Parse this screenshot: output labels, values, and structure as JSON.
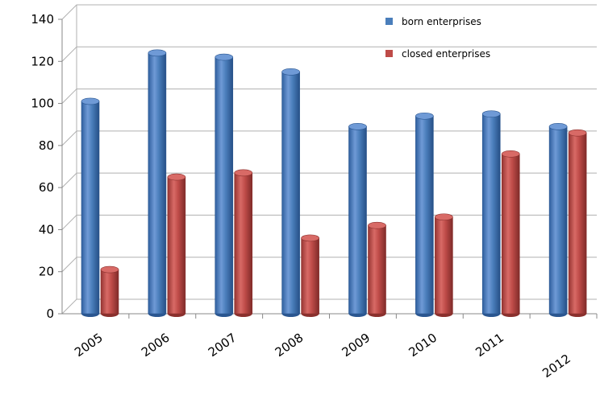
{
  "chart_data": {
    "type": "bar",
    "title": "",
    "xlabel": "",
    "ylabel": "",
    "categories": [
      "2005",
      "2006",
      "2007",
      "2008",
      "2009",
      "2010",
      "2011",
      "2012"
    ],
    "series": [
      {
        "name": "born enterprises",
        "color": "#4a7ebb",
        "values": [
          101,
          124,
          122,
          115,
          89,
          94,
          95,
          89
        ]
      },
      {
        "name": "closed enterprises",
        "color": "#be4b48",
        "values": [
          21,
          65,
          67,
          36,
          42,
          46,
          76,
          86
        ]
      }
    ],
    "ylim": [
      0,
      140
    ],
    "yticks": [
      "0",
      "20",
      "40",
      "60",
      "80",
      "100",
      "120",
      "140"
    ],
    "grid": true,
    "legend_position": "top-right",
    "style": "3d-cylinder"
  }
}
